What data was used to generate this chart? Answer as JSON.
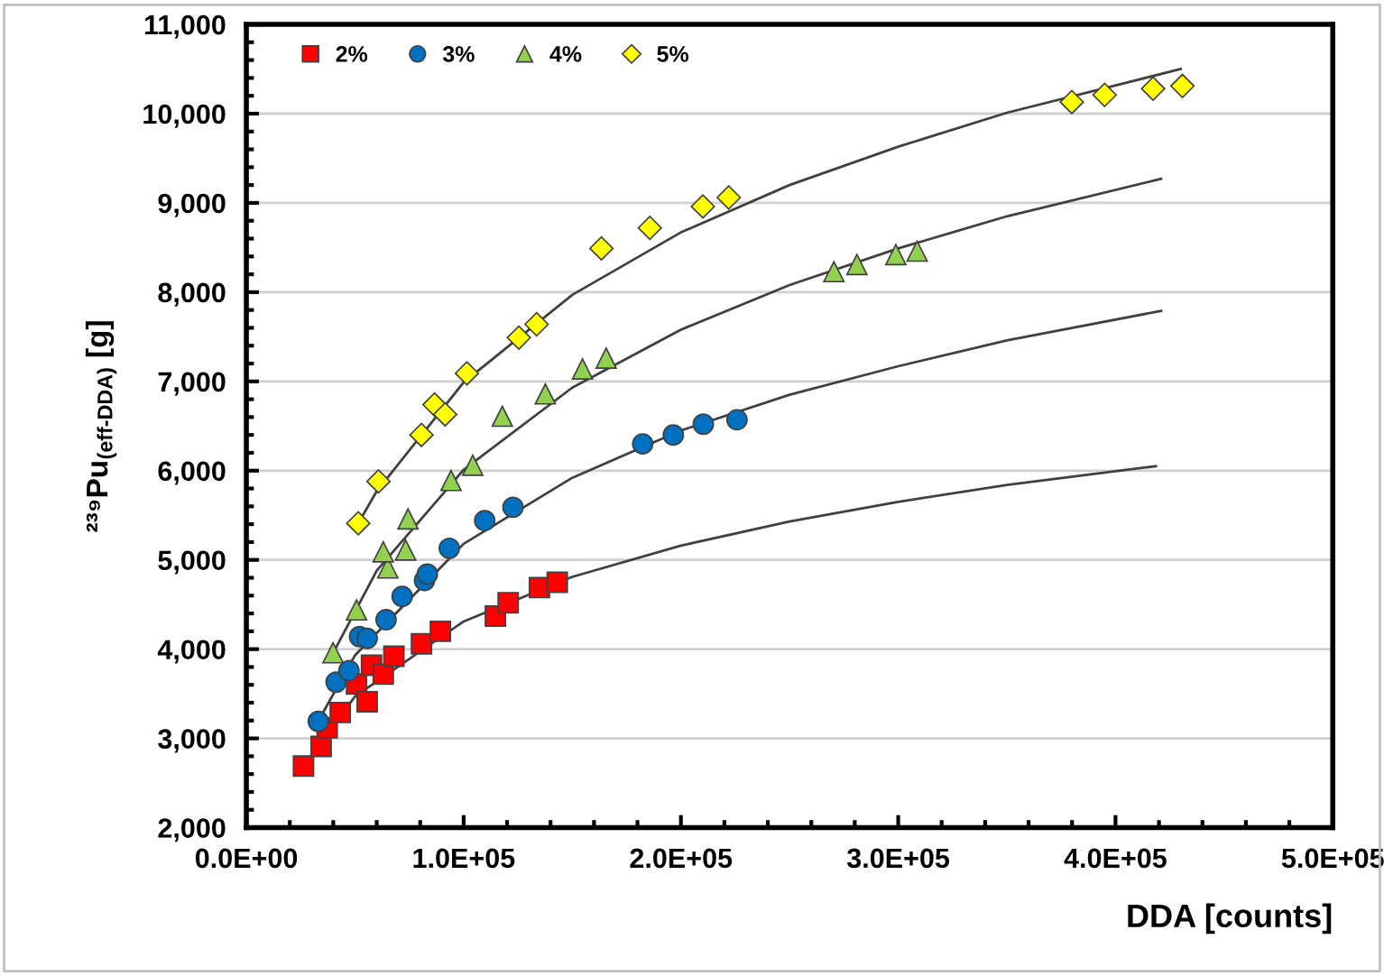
{
  "chart_data": {
    "type": "scatter",
    "xlabel": "DDA [counts]",
    "ylabel": "²³⁹Pu$_{(eff-DDA)}$ [g]",
    "xlim": [
      0,
      500000
    ],
    "ylim": [
      2000,
      11000
    ],
    "xticks": [
      {
        "value": 0,
        "label": "0.0E+00"
      },
      {
        "value": 100000,
        "label": "1.0E+05"
      },
      {
        "value": 200000,
        "label": "2.0E+05"
      },
      {
        "value": 300000,
        "label": "3.0E+05"
      },
      {
        "value": 400000,
        "label": "4.0E+05"
      },
      {
        "value": 500000,
        "label": "5.0E+05"
      }
    ],
    "yticks": [
      {
        "value": 2000,
        "label": "2,000"
      },
      {
        "value": 3000,
        "label": "3,000"
      },
      {
        "value": 4000,
        "label": "4,000"
      },
      {
        "value": 5000,
        "label": "5,000"
      },
      {
        "value": 6000,
        "label": "6,000"
      },
      {
        "value": 7000,
        "label": "7,000"
      },
      {
        "value": 8000,
        "label": "8,000"
      },
      {
        "value": 9000,
        "label": "9,000"
      },
      {
        "value": 10000,
        "label": "10,000"
      },
      {
        "value": 11000,
        "label": "11,000"
      }
    ],
    "grid": "y",
    "legend": "top left",
    "series": [
      {
        "name": "2%",
        "color": "#ff0000",
        "marker": "square",
        "x": [
          26300,
          34400,
          37200,
          43200,
          50700,
          55600,
          57600,
          63000,
          67900,
          80600,
          89300,
          114600,
          120500,
          134900,
          143100
        ],
        "values": [
          2690,
          2910,
          3120,
          3290,
          3610,
          3410,
          3820,
          3720,
          3920,
          4060,
          4200,
          4370,
          4520,
          4690,
          4750
        ]
      },
      {
        "name": "3%",
        "color": "#0070c0",
        "marker": "circle",
        "x": [
          33100,
          41300,
          47200,
          52100,
          55600,
          64300,
          71700,
          82000,
          83300,
          93400,
          109700,
          122700,
          182400,
          196500,
          210300,
          225800
        ],
        "values": [
          3190,
          3630,
          3760,
          4140,
          4120,
          4330,
          4590,
          4770,
          4840,
          5130,
          5440,
          5590,
          6300,
          6400,
          6520,
          6570
        ]
      },
      {
        "name": "4%",
        "color": "#92d050",
        "marker": "triangle",
        "x": [
          39900,
          50700,
          65100,
          63000,
          73300,
          74400,
          94200,
          104200,
          117800,
          137600,
          154700,
          165600,
          270400,
          281000,
          298900,
          308700
        ],
        "values": [
          3960,
          4440,
          4910,
          5090,
          5110,
          5460,
          5890,
          6060,
          6610,
          6860,
          7140,
          7260,
          8230,
          8310,
          8420,
          8460
        ]
      },
      {
        "name": "5%",
        "color": "#ffff00",
        "marker": "diamond",
        "x": [
          51500,
          60800,
          80600,
          86600,
          91500,
          101500,
          125400,
          133600,
          163400,
          185700,
          210100,
          222000,
          379900,
          395000,
          417300,
          430800
        ],
        "values": [
          5410,
          5880,
          6400,
          6740,
          6630,
          7090,
          7490,
          7640,
          8490,
          8720,
          8960,
          9060,
          10130,
          10210,
          10280,
          10310
        ]
      },
      {
        "type": "line",
        "color": "#404040",
        "marker": "none",
        "x": [
          26000,
          50000,
          100000,
          150000,
          200000,
          250000,
          300000,
          350000,
          418600
        ],
        "values": [
          2680,
          3470,
          4310,
          4810,
          5160,
          5430,
          5650,
          5840,
          6050
        ]
      },
      {
        "type": "line",
        "color": "#404040",
        "marker": "none",
        "x": [
          33000,
          50000,
          100000,
          150000,
          200000,
          250000,
          300000,
          350000,
          421000
        ],
        "values": [
          3190,
          3930,
          5180,
          5920,
          6450,
          6850,
          7170,
          7460,
          7790
        ]
      },
      {
        "type": "line",
        "color": "#404040",
        "marker": "none",
        "x": [
          40000,
          60000,
          100000,
          150000,
          200000,
          250000,
          300000,
          350000,
          421000
        ],
        "values": [
          3960,
          4880,
          6010,
          6930,
          7580,
          8080,
          8490,
          8850,
          9270
        ]
      },
      {
        "type": "line",
        "color": "#404040",
        "marker": "none",
        "x": [
          51500,
          60000,
          100000,
          150000,
          200000,
          250000,
          300000,
          350000,
          430000
        ],
        "values": [
          5410,
          5770,
          6990,
          7970,
          8670,
          9200,
          9630,
          10010,
          10500
        ]
      }
    ]
  }
}
